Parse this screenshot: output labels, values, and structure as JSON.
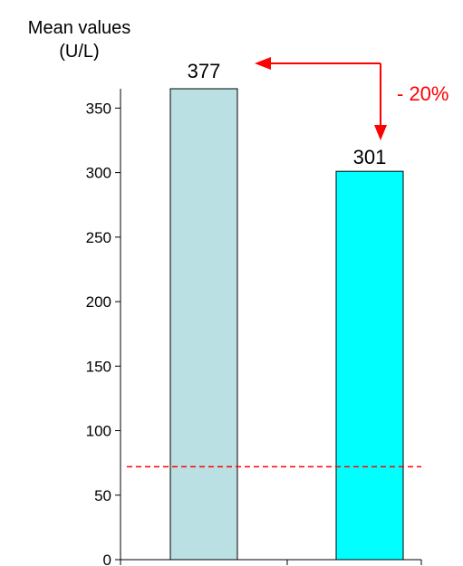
{
  "chart_data": {
    "type": "bar",
    "ylabel_line1": "Mean values",
    "ylabel_line2": "(U/L)",
    "categories": [
      "",
      ""
    ],
    "series": [
      {
        "values": [
          377,
          301
        ]
      }
    ],
    "data_labels": [
      "377",
      "301"
    ],
    "bar_colors": [
      "#BAE0E3",
      "#00FFFF"
    ],
    "y_ticks": [
      0,
      50,
      100,
      150,
      200,
      250,
      300,
      350
    ],
    "ylim": [
      0,
      365
    ],
    "reference_line": {
      "value": 72,
      "color": "#FF0000",
      "style": "dashed"
    },
    "annotation": {
      "text": "- 20%",
      "color": "#FF0000"
    },
    "grid": false
  }
}
